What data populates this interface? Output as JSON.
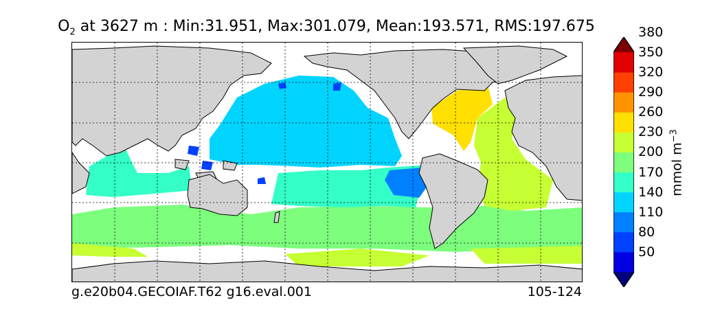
{
  "title": {
    "species": "O",
    "species_sub": "2",
    "text": " at 3627 m : Min:31.951, Max:301.079, Mean:193.571, RMS:197.675"
  },
  "footer": {
    "run_name": "g.e20b04.GECOIAF.T62 g16.eval.001",
    "years": "105-124"
  },
  "colorbar": {
    "units": "mmol m",
    "units_exponent": "−3",
    "ticks": [
      "50",
      "80",
      "110",
      "140",
      "170",
      "200",
      "230",
      "260",
      "290",
      "320",
      "350",
      "380"
    ],
    "colors": [
      "#00007f",
      "#0000e0",
      "#0040ff",
      "#0080ff",
      "#00d4ff",
      "#33ffc6",
      "#7dff7d",
      "#c6ff33",
      "#ffe000",
      "#ff9400",
      "#ff4000",
      "#e00000",
      "#7f0000"
    ]
  },
  "map": {
    "land_color": "#d3d3d3",
    "no_data_color": "#ffffff"
  }
}
